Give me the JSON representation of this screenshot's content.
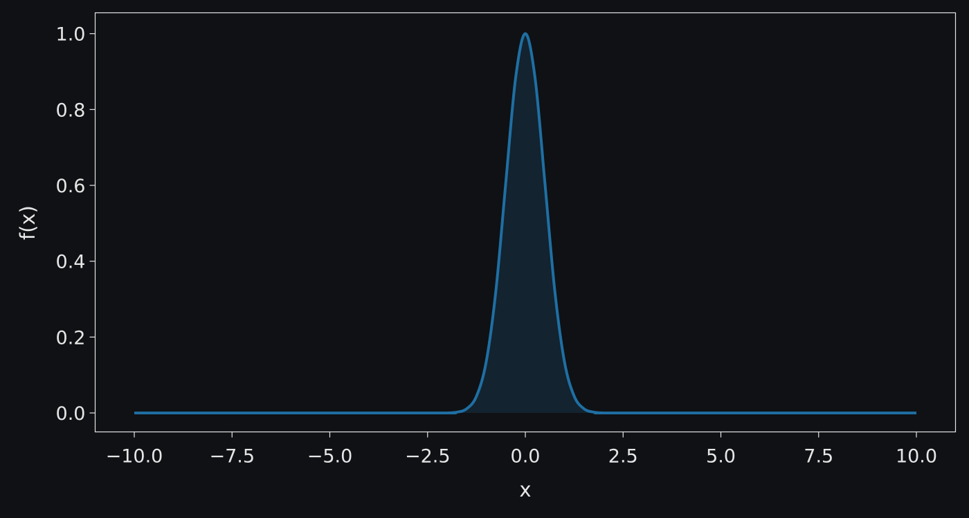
{
  "chart_data": {
    "type": "area",
    "title": "",
    "xlabel": "x",
    "ylabel": "f(x)",
    "xlim": [
      -11.0,
      11.0
    ],
    "ylim": [
      -0.05,
      1.055
    ],
    "grid": false,
    "x_ticks": [
      -10.0,
      -7.5,
      -5.0,
      -2.5,
      0.0,
      2.5,
      5.0,
      7.5,
      10.0
    ],
    "x_tick_labels": [
      "−10.0",
      "−7.5",
      "−5.0",
      "−2.5",
      "0.0",
      "2.5",
      "5.0",
      "7.5",
      "10.0"
    ],
    "y_ticks": [
      0.0,
      0.2,
      0.4,
      0.6,
      0.8,
      1.0
    ],
    "y_tick_labels": [
      "0.0",
      "0.2",
      "0.4",
      "0.6",
      "0.8",
      "1.0"
    ],
    "series": [
      {
        "x": [
          -10.0,
          -2.5,
          -2.0,
          -1.75,
          -1.5,
          -1.25,
          -1.0,
          -0.75,
          -0.5,
          -0.25,
          0.0,
          0.25,
          0.5,
          0.75,
          1.0,
          1.25,
          1.5,
          1.75,
          2.0,
          2.5,
          10.0
        ],
        "y": [
          0.0,
          0.0,
          0.0,
          0.002,
          0.011,
          0.044,
          0.135,
          0.325,
          0.607,
          0.882,
          1.0,
          0.882,
          0.607,
          0.325,
          0.135,
          0.044,
          0.011,
          0.002,
          0.0,
          0.0,
          0.0
        ],
        "color": "#1f6fa3",
        "fill_color": "#13232f"
      }
    ]
  },
  "colors": {
    "background": "#0f1114",
    "axes_frame": "#e6e6e6",
    "text": "#e6e6e6"
  }
}
